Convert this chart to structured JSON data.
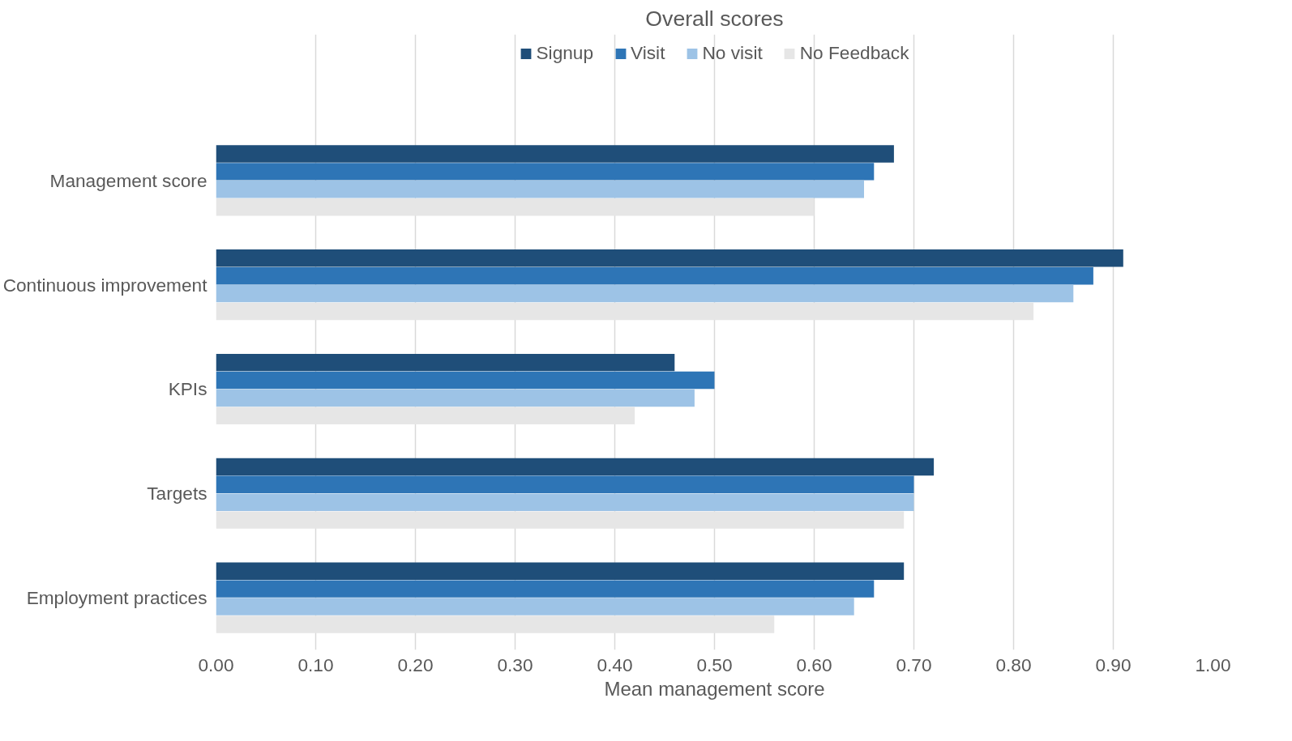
{
  "chart_data": {
    "type": "bar",
    "orientation": "horizontal",
    "title": "Overall scores",
    "xlabel": "Mean management score",
    "categories": [
      "Management score",
      "Continuous improvement",
      "KPIs",
      "Targets",
      "Employment practices"
    ],
    "series": [
      {
        "name": "Signup",
        "color": "#1f4e79",
        "values": [
          0.68,
          0.91,
          0.46,
          0.72,
          0.69
        ]
      },
      {
        "name": "Visit",
        "color": "#2e75b6",
        "values": [
          0.66,
          0.88,
          0.5,
          0.7,
          0.66
        ]
      },
      {
        "name": "No visit",
        "color": "#9dc3e6",
        "values": [
          0.65,
          0.86,
          0.48,
          0.7,
          0.64
        ]
      },
      {
        "name": "No Feedback",
        "color": "#e6e6e6",
        "values": [
          0.6,
          0.82,
          0.42,
          0.69,
          0.56
        ]
      }
    ],
    "xlim": [
      0,
      1
    ],
    "xticks": [
      {
        "value": 0,
        "label": "0.00"
      },
      {
        "value": 0.1,
        "label": "0.10"
      },
      {
        "value": 0.2,
        "label": "0.20"
      },
      {
        "value": 0.3,
        "label": "0.30"
      },
      {
        "value": 0.4,
        "label": "0.40"
      },
      {
        "value": 0.5,
        "label": "0.50"
      },
      {
        "value": 0.6,
        "label": "0.60"
      },
      {
        "value": 0.7,
        "label": "0.70"
      },
      {
        "value": 0.8,
        "label": "0.80"
      },
      {
        "value": 0.9,
        "label": "0.90"
      },
      {
        "value": 1,
        "label": "1.00"
      }
    ],
    "grid": "x",
    "legend": "top"
  }
}
